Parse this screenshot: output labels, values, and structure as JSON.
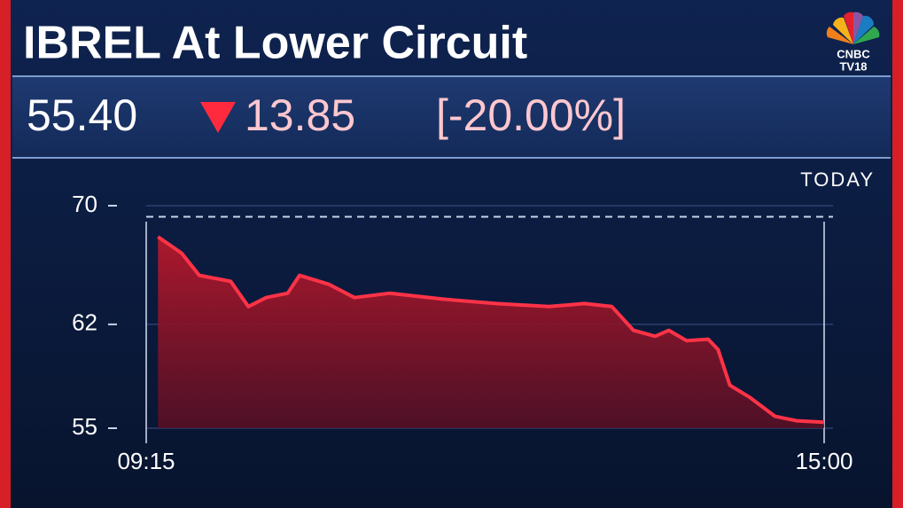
{
  "chart_data": {
    "type": "area",
    "title": "IBREL At Lower Circuit",
    "logo": {
      "line1": "CNBC",
      "line2": "TV18"
    },
    "quote": {
      "price": "55.40",
      "change": "13.85",
      "change_percent": "[-20.00%]"
    },
    "period": "TODAY",
    "x": [
      "09:21",
      "09:33",
      "09:42",
      "09:58",
      "10:07",
      "10:16",
      "10:27",
      "10:33",
      "10:48",
      "11:01",
      "11:19",
      "11:46",
      "12:13",
      "12:40",
      "12:58",
      "13:12",
      "13:23",
      "13:34",
      "13:41",
      "13:50",
      "14:01",
      "14:06",
      "14:12",
      "14:22",
      "14:35",
      "14:46",
      "15:00"
    ],
    "series": [
      {
        "color": "#ff3347",
        "values": [
          67.9,
          66.8,
          65.3,
          64.9,
          63.2,
          63.8,
          64.1,
          65.3,
          64.7,
          63.8,
          64.1,
          63.7,
          63.4,
          63.2,
          63.4,
          63.2,
          61.6,
          61.2,
          61.6,
          60.9,
          61.0,
          60.3,
          57.9,
          57.1,
          55.8,
          55.5,
          55.4
        ]
      }
    ],
    "reference_line": 69.25,
    "xlim": [
      "09:15",
      "15:00"
    ],
    "xticks": [
      "09:15",
      "15:00"
    ],
    "ylim": [
      55,
      70
    ],
    "yticks": [
      70,
      62,
      55
    ],
    "grid": true
  }
}
